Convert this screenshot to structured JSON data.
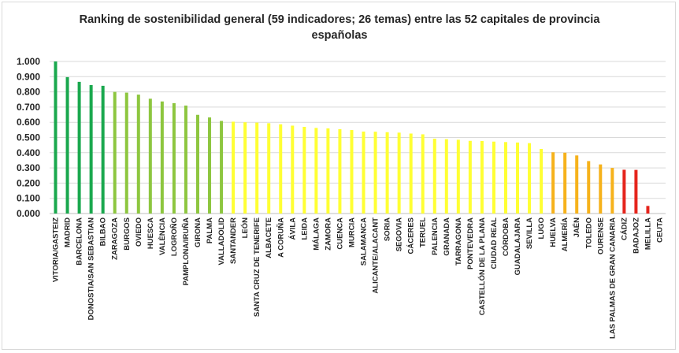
{
  "chart_data": {
    "type": "bar",
    "title": "Ranking de sostenibilidad general (59 indicadores; 26 temas) entre las 52 capitales de provincia españolas",
    "xlabel": "",
    "ylabel": "",
    "ylim": [
      0,
      1
    ],
    "yticks": [
      "0.000",
      "0.100",
      "0.200",
      "0.300",
      "0.400",
      "0.500",
      "0.600",
      "0.700",
      "0.800",
      "0.900",
      "1.000"
    ],
    "grid": true,
    "legend": "none",
    "categories": [
      "VITORIA/GASTEIZ",
      "MADRID",
      "BARCELONA",
      "DONOSTIA/SAN SEBASTIAN",
      "BILBAO",
      "ZARAGOZA",
      "BURGOS",
      "OVIEDO",
      "HUESCA",
      "VALÈNCIA",
      "LOGROÑO",
      "PAMPLONA/IRUÑA",
      "GIRONA",
      "PALMA",
      "VALLADOLID",
      "SANTANDER",
      "LEÓN",
      "SANTA CRUZ DE TENERIFE",
      "ALBACETE",
      "A CORUÑA",
      "ÁVILA",
      "LEIDA",
      "MÁLAGA",
      "ZAMORA",
      "CUENCA",
      "MURCIA",
      "SALAMANCA",
      "ALICANTE/ALACANT",
      "SORIA",
      "SEGOVIA",
      "CÁCERES",
      "TERUEL",
      "PALENCIA",
      "GRANADA",
      "TARRAGONA",
      "PONTEVEDRA",
      "CASTELLÓN DE LA PLANA",
      "CIUDAD REAL",
      "CÓRDOBA",
      "GUADALAJARA",
      "SEVILLA",
      "LUGO",
      "HUELVA",
      "ALMERÍA",
      "JAÉN",
      "TOLEDO",
      "OURENSE",
      "LAS PALMAS DE GRAN CANARIA",
      "CÁDIZ",
      "BADAJOZ",
      "MELILLA",
      "CEUTA"
    ],
    "values": [
      1.0,
      0.897,
      0.866,
      0.845,
      0.84,
      0.8,
      0.795,
      0.782,
      0.755,
      0.737,
      0.726,
      0.71,
      0.649,
      0.632,
      0.609,
      0.604,
      0.6,
      0.598,
      0.594,
      0.587,
      0.578,
      0.57,
      0.563,
      0.56,
      0.555,
      0.549,
      0.539,
      0.538,
      0.535,
      0.532,
      0.526,
      0.521,
      0.492,
      0.489,
      0.485,
      0.478,
      0.477,
      0.473,
      0.47,
      0.467,
      0.463,
      0.425,
      0.403,
      0.4,
      0.382,
      0.345,
      0.323,
      0.3,
      0.288,
      0.287,
      0.05,
      0.0
    ],
    "colors": [
      "#1aa84e",
      "#1aa84e",
      "#1aa84e",
      "#1aa84e",
      "#1aa84e",
      "#8dc63f",
      "#8dc63f",
      "#8dc63f",
      "#8dc63f",
      "#8dc63f",
      "#8dc63f",
      "#8dc63f",
      "#8dc63f",
      "#8dc63f",
      "#8dc63f",
      "#ffff33",
      "#ffff33",
      "#ffff33",
      "#ffff33",
      "#ffff33",
      "#ffff33",
      "#ffff33",
      "#ffff33",
      "#ffff33",
      "#ffff33",
      "#ffff33",
      "#ffff33",
      "#ffff33",
      "#ffff33",
      "#ffff33",
      "#ffff33",
      "#ffff33",
      "#ffff33",
      "#ffff33",
      "#ffff33",
      "#ffff33",
      "#ffff33",
      "#ffff33",
      "#ffff33",
      "#ffff33",
      "#ffff33",
      "#ffff33",
      "#f6b21b",
      "#f6b21b",
      "#f6b21b",
      "#f6b21b",
      "#f6b21b",
      "#f6b21b",
      "#e5241c",
      "#e5241c",
      "#e5241c",
      "#e5241c"
    ]
  }
}
